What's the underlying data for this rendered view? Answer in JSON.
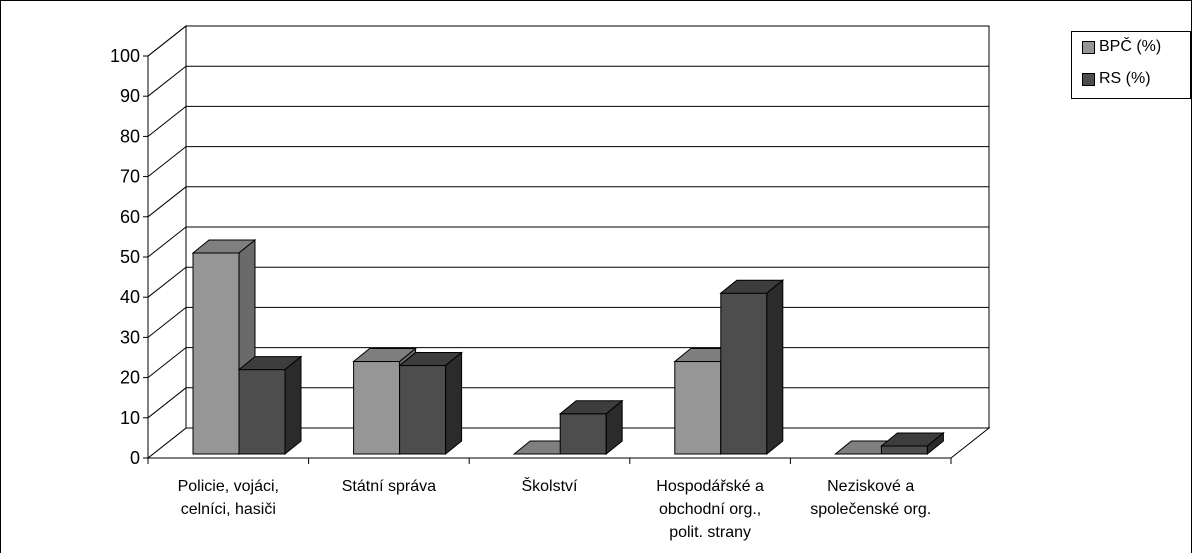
{
  "chart_data": {
    "type": "bar",
    "categories": [
      [
        "Policie, vojáci,",
        "celníci, hasiči"
      ],
      [
        "Státní správa"
      ],
      [
        "Školství"
      ],
      [
        "Hospodářské a",
        "obchodní org.,",
        "polit. strany"
      ],
      [
        "Neziskové a",
        "společenské org."
      ]
    ],
    "series": [
      {
        "name": "BPČ (%)",
        "values": [
          50,
          23,
          0,
          23,
          0
        ],
        "color": "#969696",
        "top": "#7f7f7f",
        "side": "#6a6a6a"
      },
      {
        "name": "RS (%)",
        "values": [
          21,
          22,
          10,
          40,
          2
        ],
        "color": "#4d4d4d",
        "top": "#3d3d3d",
        "side": "#2b2b2b"
      }
    ],
    "ylim": [
      0,
      100
    ],
    "yticks": [
      0,
      10,
      20,
      30,
      40,
      50,
      60,
      70,
      80,
      90,
      100
    ],
    "grid": true,
    "legend": "top-right",
    "projection": "3d-clustered"
  }
}
